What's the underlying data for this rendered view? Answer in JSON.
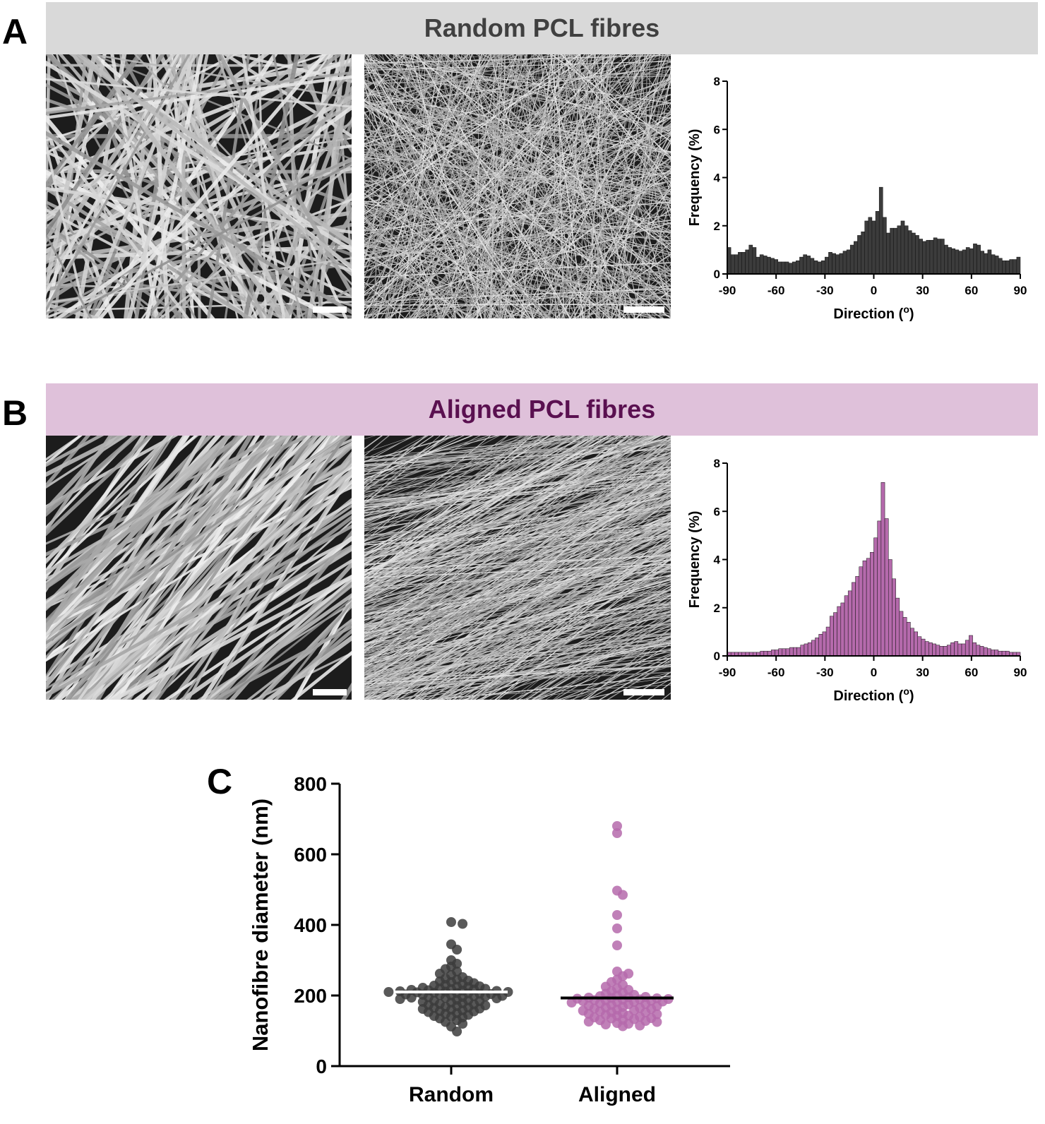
{
  "panels": {
    "a": {
      "letter": "A",
      "banner": "Random PCL fibres",
      "banner_bg": "#d9d9d9",
      "banner_color": "#404040"
    },
    "b": {
      "letter": "B",
      "banner": "Aligned PCL fibres",
      "banner_bg": "#dfc1da",
      "banner_color": "#5a1050"
    },
    "c": {
      "letter": "C"
    }
  },
  "colors": {
    "random": "#3c3c3c",
    "aligned": "#b56aac"
  },
  "chart_data": [
    {
      "type": "bar",
      "panel": "A",
      "xlabel": "Direction (o)",
      "ylabel": "Frequency (%)",
      "xlim": [
        -90,
        90
      ],
      "ylim": [
        0,
        8
      ],
      "xticks": [
        "-90",
        "-60",
        "-30",
        "0",
        "30",
        "60",
        "90"
      ],
      "yticks": [
        "0",
        "2",
        "4",
        "6",
        "8"
      ],
      "bin_width": 2,
      "values": [
        1.1,
        0.8,
        0.8,
        0.9,
        0.9,
        1.0,
        1.2,
        1.1,
        0.7,
        0.8,
        0.75,
        0.7,
        0.65,
        0.6,
        0.5,
        0.5,
        0.5,
        0.45,
        0.5,
        0.55,
        0.7,
        0.8,
        0.75,
        0.65,
        0.55,
        0.5,
        0.55,
        0.7,
        0.9,
        0.85,
        0.8,
        0.85,
        0.95,
        1.0,
        1.2,
        1.35,
        1.6,
        1.75,
        2.2,
        2.35,
        2.2,
        2.6,
        3.6,
        2.35,
        1.7,
        1.9,
        1.9,
        2.0,
        2.2,
        2.0,
        1.8,
        1.7,
        1.6,
        1.45,
        1.35,
        1.4,
        1.4,
        1.5,
        1.45,
        1.45,
        1.2,
        1.1,
        1.05,
        1.0,
        0.95,
        1.0,
        1.1,
        1.05,
        1.25,
        1.2,
        0.95,
        0.85,
        1.0,
        0.8,
        0.75,
        0.65,
        0.55,
        0.55,
        0.6,
        0.6,
        0.7
      ]
    },
    {
      "type": "bar",
      "panel": "B",
      "xlabel": "Direction (o)",
      "ylabel": "Frequency (%)",
      "xlim": [
        -90,
        90
      ],
      "ylim": [
        0,
        8
      ],
      "xticks": [
        "-90",
        "-60",
        "-30",
        "0",
        "30",
        "60",
        "90"
      ],
      "yticks": [
        "0",
        "2",
        "4",
        "6",
        "8"
      ],
      "bin_width": 2,
      "values": [
        0.15,
        0.15,
        0.15,
        0.15,
        0.15,
        0.15,
        0.15,
        0.15,
        0.15,
        0.2,
        0.2,
        0.2,
        0.25,
        0.25,
        0.3,
        0.3,
        0.3,
        0.35,
        0.35,
        0.35,
        0.45,
        0.5,
        0.55,
        0.65,
        0.75,
        0.9,
        1.0,
        1.2,
        1.65,
        1.8,
        2.05,
        2.2,
        2.5,
        2.7,
        3.05,
        3.3,
        3.7,
        3.95,
        4.05,
        4.3,
        4.9,
        5.6,
        7.2,
        5.7,
        4.0,
        3.2,
        2.4,
        1.85,
        1.6,
        1.4,
        1.15,
        1.0,
        0.8,
        0.7,
        0.6,
        0.55,
        0.5,
        0.45,
        0.4,
        0.4,
        0.45,
        0.55,
        0.6,
        0.5,
        0.5,
        0.65,
        0.85,
        0.55,
        0.45,
        0.4,
        0.35,
        0.3,
        0.25,
        0.25,
        0.2,
        0.2,
        0.2,
        0.15,
        0.15,
        0.15
      ]
    },
    {
      "type": "scatter",
      "panel": "C",
      "ylabel": "Nanofibre diameter (nm)",
      "ylim": [
        0,
        800
      ],
      "yticks": [
        "0",
        "200",
        "400",
        "600",
        "800"
      ],
      "categories": [
        "Random",
        "Aligned"
      ],
      "series": [
        {
          "category": "Random",
          "mean": 210,
          "values": [
            408,
            403,
            345,
            330,
            300,
            290,
            282,
            275,
            268,
            262,
            258,
            252,
            248,
            245,
            242,
            240,
            238,
            235,
            232,
            230,
            228,
            226,
            225,
            224,
            222,
            220,
            219,
            218,
            217,
            216,
            215,
            214,
            213,
            212,
            211,
            210,
            210,
            209,
            208,
            207,
            206,
            205,
            204,
            203,
            202,
            201,
            200,
            199,
            198,
            197,
            196,
            195,
            194,
            193,
            192,
            190,
            188,
            186,
            185,
            184,
            182,
            180,
            178,
            176,
            175,
            173,
            172,
            170,
            168,
            166,
            165,
            163,
            162,
            160,
            158,
            156,
            155,
            153,
            150,
            148,
            145,
            142,
            140,
            138,
            135,
            130,
            125,
            120,
            112,
            98
          ]
        },
        {
          "category": "Aligned",
          "mean": 193,
          "values": [
            680,
            660,
            497,
            485,
            428,
            390,
            342,
            268,
            262,
            255,
            245,
            238,
            230,
            225,
            220,
            216,
            212,
            208,
            205,
            202,
            200,
            198,
            196,
            195,
            194,
            193,
            192,
            191,
            190,
            189,
            188,
            187,
            186,
            185,
            184,
            183,
            182,
            181,
            180,
            178,
            176,
            175,
            173,
            171,
            170,
            168,
            166,
            165,
            163,
            162,
            160,
            158,
            157,
            155,
            153,
            152,
            150,
            148,
            147,
            145,
            143,
            142,
            140,
            138,
            136,
            135,
            133,
            131,
            130,
            128,
            126,
            125,
            122,
            120,
            118,
            115,
            113
          ]
        }
      ]
    }
  ]
}
